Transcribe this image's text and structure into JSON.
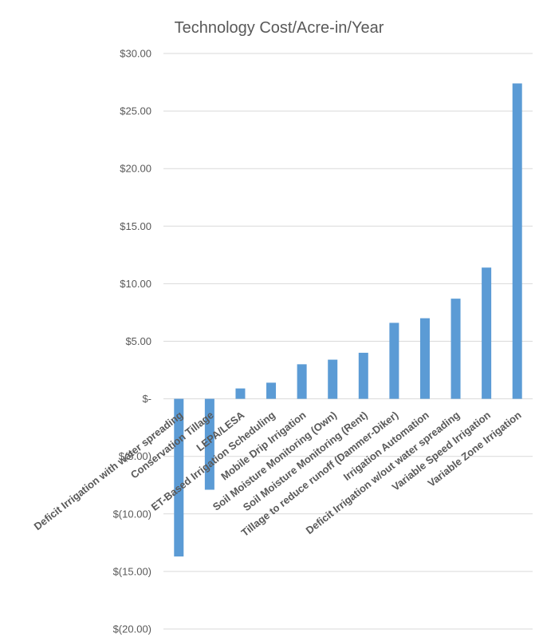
{
  "chart_data": {
    "type": "bar",
    "title": "Technology Cost/Acre-in/Year",
    "xlabel": "",
    "ylabel": "",
    "ylim": [
      -20,
      30
    ],
    "grid": true,
    "legend": "none",
    "bar_color": "#5b9bd5",
    "grid_color": "#d9d9d9",
    "text_color": "#595959",
    "y_ticks": [
      {
        "value": 30,
        "label": "$30.00"
      },
      {
        "value": 25,
        "label": "$25.00"
      },
      {
        "value": 20,
        "label": "$20.00"
      },
      {
        "value": 15,
        "label": "$15.00"
      },
      {
        "value": 10,
        "label": "$10.00"
      },
      {
        "value": 5,
        "label": "$5.00"
      },
      {
        "value": 0,
        "label": "$-"
      },
      {
        "value": -5,
        "label": "$(5.00)"
      },
      {
        "value": -10,
        "label": "$(10.00)"
      },
      {
        "value": -15,
        "label": "$(15.00)"
      },
      {
        "value": -20,
        "label": "$(20.00)"
      }
    ],
    "categories": [
      "Deficit Irrigation with water spreading",
      "Conservation Tillage",
      "LEPA/LESA",
      "ET-Based Irrigation Scheduling",
      "Mobile Drip Irrigation",
      "Soil Moisture Monitoring (Own)",
      "Soil Moisture Monitoring (Rent)",
      "Tillage to reduce runoff (Dammer-Diker)",
      "Irrigation Automation",
      "Deficit Irrigation w/out water spreading",
      "Variable Speed Irrigation",
      "Variable Zone Irrigation"
    ],
    "values": [
      -13.7,
      -7.9,
      0.9,
      1.4,
      3.0,
      3.4,
      4.0,
      6.6,
      7.0,
      8.7,
      11.4,
      27.4
    ]
  }
}
